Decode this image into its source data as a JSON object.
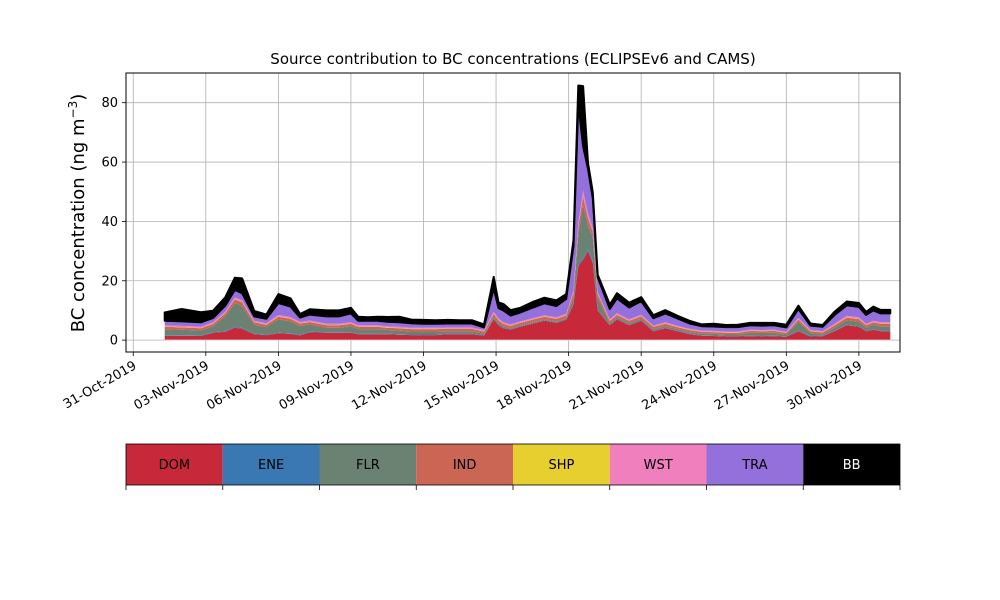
{
  "chart_data": {
    "type": "area",
    "stacked": true,
    "title": "Source contribution to BC concentrations (ECLIPSEv6 and CAMS)",
    "ylabel": "BC concentration (ng m",
    "ylabel_sup": "−3",
    "ylabel_close": ")",
    "xlabel": "",
    "grid": true,
    "ylim": [
      -4,
      90
    ],
    "yticks": [
      0,
      20,
      40,
      60,
      80
    ],
    "xlim_day": [
      -0.3,
      31.7
    ],
    "xticks": [
      {
        "day": 0,
        "label": "31-Oct-2019"
      },
      {
        "day": 3,
        "label": "03-Nov-2019"
      },
      {
        "day": 6,
        "label": "06-Nov-2019"
      },
      {
        "day": 9,
        "label": "09-Nov-2019"
      },
      {
        "day": 12,
        "label": "12-Nov-2019"
      },
      {
        "day": 15,
        "label": "15-Nov-2019"
      },
      {
        "day": 18,
        "label": "18-Nov-2019"
      },
      {
        "day": 21,
        "label": "21-Nov-2019"
      },
      {
        "day": 24,
        "label": "24-Nov-2019"
      },
      {
        "day": 27,
        "label": "27-Nov-2019"
      },
      {
        "day": 30,
        "label": "30-Nov-2019"
      }
    ],
    "x_days": [
      1.3,
      2,
      2.8,
      3.3,
      3.8,
      4.2,
      4.5,
      5,
      5.5,
      6,
      6.5,
      6.9,
      7.3,
      8,
      8.5,
      9,
      9.3,
      9.7,
      10.1,
      10.5,
      11,
      11.5,
      12,
      12.5,
      13,
      13.5,
      14,
      14.5,
      14.9,
      15.1,
      15.3,
      15.6,
      16,
      16.5,
      17,
      17.5,
      17.9,
      18.2,
      18.4,
      18.6,
      18.8,
      19.0,
      19.2,
      19.7,
      20,
      20.5,
      21,
      21.5,
      22,
      22.5,
      23,
      23.5,
      24,
      24.5,
      25,
      25.5,
      26,
      26.5,
      27,
      27.5,
      28,
      28.5,
      29,
      29.5,
      30,
      30.3,
      30.6,
      30.9,
      31.3
    ],
    "series": [
      {
        "name": "DOM",
        "color": "#c8293a",
        "text_color": "#000000",
        "values": [
          1.5,
          1.5,
          1.4,
          2.5,
          2.8,
          4.2,
          3.8,
          2.0,
          1.7,
          2.3,
          2.1,
          1.6,
          2.6,
          2.5,
          2.5,
          2.5,
          2.0,
          2.0,
          2.0,
          2.0,
          1.8,
          1.7,
          1.7,
          1.7,
          2.0,
          2.0,
          2.0,
          1.5,
          7.0,
          5.0,
          4.0,
          3.5,
          4.5,
          5.5,
          6.5,
          5.8,
          6.8,
          12,
          25,
          27,
          30,
          26,
          10,
          5.0,
          7.0,
          5.0,
          6.5,
          3.0,
          4.0,
          3.0,
          2.0,
          1.5,
          1.4,
          1.2,
          1.2,
          1.3,
          1.2,
          1.3,
          1.1,
          3.0,
          1.2,
          1.3,
          3.0,
          5.0,
          4.5,
          3.0,
          3.5,
          3.0,
          3.0
        ]
      },
      {
        "name": "ENE",
        "color": "#3a78b4",
        "text_color": "#000000",
        "values": [
          0.2,
          0.2,
          0.2,
          0.2,
          0.2,
          0.3,
          0.3,
          0.2,
          0.2,
          0.2,
          0.2,
          0.2,
          0.2,
          0.2,
          0.2,
          0.2,
          0.2,
          0.2,
          0.2,
          0.2,
          0.2,
          0.2,
          0.2,
          0.2,
          0.2,
          0.2,
          0.2,
          0.2,
          0.3,
          0.3,
          0.2,
          0.2,
          0.2,
          0.2,
          0.2,
          0.2,
          0.3,
          0.4,
          0.6,
          0.6,
          0.6,
          0.5,
          0.3,
          0.2,
          0.2,
          0.2,
          0.2,
          0.2,
          0.2,
          0.2,
          0.2,
          0.2,
          0.2,
          0.2,
          0.2,
          0.2,
          0.2,
          0.2,
          0.2,
          0.2,
          0.2,
          0.2,
          0.2,
          0.2,
          0.2,
          0.2,
          0.2,
          0.2,
          0.2
        ]
      },
      {
        "name": "FLR",
        "color": "#6b8171",
        "text_color": "#000000",
        "values": [
          2.0,
          1.8,
          1.6,
          2.0,
          5.0,
          8.0,
          7.5,
          3.0,
          2.5,
          4.5,
          4.0,
          3.0,
          2.5,
          1.5,
          1.5,
          2.0,
          1.5,
          1.5,
          1.5,
          1.2,
          1.2,
          1.0,
          1.0,
          1.0,
          0.8,
          0.8,
          0.8,
          0.5,
          0.5,
          0.5,
          0.5,
          0.3,
          0.3,
          0.3,
          0.3,
          0.3,
          0.3,
          2.0,
          10,
          18,
          8,
          8,
          4,
          0.5,
          0.5,
          0.5,
          0.5,
          0.5,
          0.5,
          0.5,
          0.5,
          0.5,
          0.5,
          0.5,
          0.5,
          1.0,
          1.0,
          1.0,
          0.5,
          3.0,
          1.0,
          0.5,
          1.0,
          1.5,
          1.5,
          1.0,
          1.5,
          1.5,
          1.5
        ]
      },
      {
        "name": "IND",
        "color": "#cc6654",
        "text_color": "#000000",
        "values": [
          0.8,
          0.8,
          0.8,
          0.8,
          1.0,
          1.2,
          1.2,
          0.8,
          0.8,
          0.9,
          0.9,
          0.8,
          0.8,
          0.8,
          0.8,
          0.8,
          0.8,
          0.8,
          0.8,
          0.8,
          0.8,
          0.8,
          0.8,
          0.8,
          0.8,
          0.8,
          0.8,
          0.7,
          1.0,
          0.9,
          0.8,
          0.8,
          0.8,
          0.9,
          0.9,
          0.9,
          0.9,
          1.5,
          2.5,
          2.8,
          2.5,
          2.0,
          1.2,
          0.8,
          0.8,
          0.8,
          0.8,
          0.8,
          0.8,
          0.7,
          0.7,
          0.6,
          0.6,
          0.6,
          0.6,
          0.6,
          0.6,
          0.6,
          0.6,
          0.8,
          0.6,
          0.6,
          0.8,
          0.9,
          0.9,
          0.8,
          0.8,
          0.8,
          0.8
        ]
      },
      {
        "name": "SHP",
        "color": "#e6cf2e",
        "text_color": "#000000",
        "values": [
          0.1,
          0.1,
          0.1,
          0.1,
          0.1,
          0.1,
          0.1,
          0.1,
          0.1,
          0.1,
          0.1,
          0.1,
          0.1,
          0.1,
          0.1,
          0.1,
          0.1,
          0.1,
          0.1,
          0.1,
          0.1,
          0.1,
          0.1,
          0.1,
          0.1,
          0.1,
          0.1,
          0.1,
          0.1,
          0.1,
          0.1,
          0.1,
          0.1,
          0.1,
          0.1,
          0.1,
          0.1,
          0.1,
          0.1,
          0.1,
          0.1,
          0.1,
          0.1,
          0.1,
          0.1,
          0.1,
          0.1,
          0.1,
          0.1,
          0.1,
          0.1,
          0.1,
          0.1,
          0.1,
          0.1,
          0.1,
          0.1,
          0.1,
          0.1,
          0.1,
          0.1,
          0.1,
          0.1,
          0.1,
          0.1,
          0.1,
          0.1,
          0.1,
          0.1
        ]
      },
      {
        "name": "WST",
        "color": "#f07fbe",
        "text_color": "#000000",
        "values": [
          0.4,
          0.4,
          0.4,
          0.4,
          0.5,
          0.6,
          0.6,
          0.4,
          0.4,
          0.5,
          0.5,
          0.4,
          0.4,
          0.4,
          0.4,
          0.4,
          0.4,
          0.4,
          0.4,
          0.4,
          0.4,
          0.4,
          0.4,
          0.4,
          0.4,
          0.4,
          0.4,
          0.3,
          0.6,
          0.5,
          0.4,
          0.4,
          0.4,
          0.4,
          0.4,
          0.4,
          0.5,
          0.8,
          1.5,
          1.8,
          1.5,
          1.2,
          0.6,
          0.4,
          0.5,
          0.4,
          0.5,
          0.3,
          0.4,
          0.3,
          0.3,
          0.3,
          0.3,
          0.3,
          0.3,
          0.3,
          0.3,
          0.3,
          0.3,
          0.4,
          0.3,
          0.3,
          0.4,
          0.5,
          0.5,
          0.4,
          0.4,
          0.4,
          0.4
        ]
      },
      {
        "name": "TRA",
        "color": "#9370db",
        "text_color": "#000000",
        "values": [
          1.5,
          1.5,
          1.5,
          1.5,
          2.0,
          2.5,
          2.3,
          1.5,
          1.5,
          4.0,
          3.5,
          1.5,
          2.0,
          2.5,
          2.5,
          3.0,
          1.5,
          1.5,
          1.5,
          1.5,
          1.5,
          1.5,
          1.3,
          1.3,
          1.3,
          1.3,
          1.3,
          1.0,
          8.0,
          3.5,
          4.0,
          3.0,
          3.0,
          3.5,
          4.0,
          3.8,
          5.0,
          15,
          40,
          15,
          15,
          10,
          5.0,
          3.5,
          5.0,
          4.0,
          4.5,
          2.5,
          3.0,
          2.5,
          1.8,
          1.5,
          1.5,
          1.5,
          1.5,
          1.5,
          1.5,
          1.5,
          1.5,
          3.0,
          1.5,
          1.5,
          3.0,
          3.5,
          3.5,
          3.0,
          3.5,
          3.0,
          3.0
        ]
      },
      {
        "name": "BB",
        "color": "#000000",
        "text_color": "#ffffff",
        "values": [
          2.8,
          4.2,
          3.4,
          2.4,
          2.8,
          4.1,
          5.0,
          1.8,
          1.4,
          3.0,
          2.8,
          1.2,
          1.8,
          2.0,
          2.0,
          1.9,
          1.4,
          1.2,
          1.4,
          1.6,
          1.9,
          1.2,
          1.3,
          1.2,
          1.2,
          1.1,
          1.1,
          1.0,
          3.8,
          1.9,
          2.2,
          1.8,
          1.6,
          1.9,
          1.9,
          1.9,
          1.6,
          1.9,
          6.1,
          20.3,
          2.0,
          2.0,
          0.8,
          1.5,
          1.7,
          1.6,
          1.4,
          1.0,
          1.1,
          0.9,
          0.9,
          0.6,
          0.9,
          0.7,
          0.8,
          0.8,
          0.9,
          0.8,
          0.9,
          1.1,
          0.7,
          0.6,
          1.1,
          1.3,
          1.3,
          1.0,
          1.3,
          1.2,
          1.2
        ]
      }
    ]
  }
}
